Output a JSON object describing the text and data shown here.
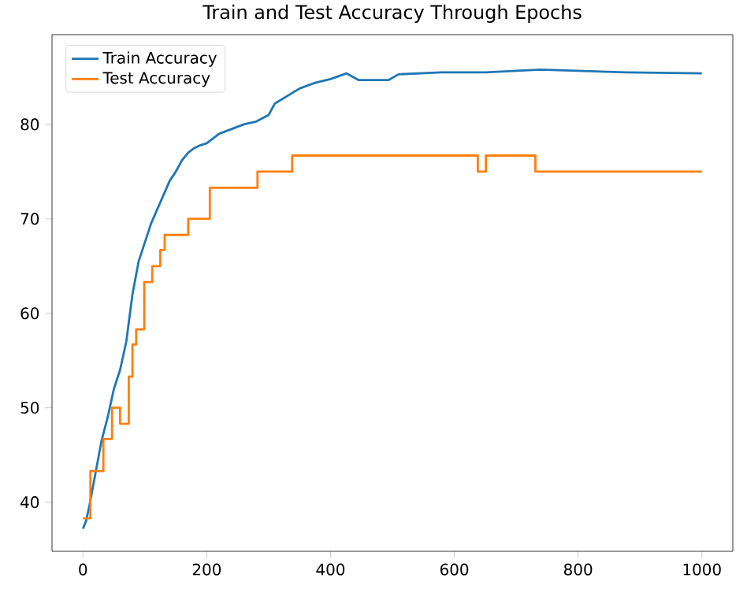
{
  "chart_data": {
    "type": "line",
    "title": "Train and Test Accuracy Through Epochs",
    "xlim": [
      -50,
      1050
    ],
    "ylim": [
      34.8,
      89.5
    ],
    "xticks": [
      0,
      200,
      400,
      600,
      800,
      1000
    ],
    "yticks": [
      40,
      50,
      60,
      70,
      80
    ],
    "legend": "top left",
    "grid": false,
    "series": [
      {
        "name": "Train Accuracy",
        "color": "#1f77b4",
        "x": [
          0,
          5,
          10,
          20,
          30,
          40,
          50,
          60,
          70,
          80,
          90,
          100,
          110,
          120,
          130,
          140,
          150,
          160,
          170,
          180,
          190,
          200,
          220,
          240,
          260,
          280,
          300,
          310,
          330,
          350,
          375,
          400,
          426,
          445,
          494,
          510,
          579,
          650,
          739,
          878,
          1000
        ],
        "values": [
          37.2,
          38,
          39.5,
          43,
          46.5,
          49,
          52,
          54,
          57,
          62,
          65.5,
          67.5,
          69.5,
          71,
          72.5,
          74,
          75,
          76.2,
          77,
          77.5,
          77.8,
          78,
          79,
          79.5,
          80,
          80.3,
          81,
          82.2,
          83,
          83.8,
          84.4,
          84.8,
          85.4,
          84.7,
          84.7,
          85.3,
          85.5,
          85.5,
          85.8,
          85.5,
          85.4
        ]
      },
      {
        "name": "Test Accuracy",
        "color": "#ff7f0e",
        "type": "step",
        "x": [
          0,
          12,
          33,
          47,
          60,
          74,
          80,
          86,
          99,
          112,
          125,
          132,
          170,
          205,
          282,
          338,
          638,
          651,
          731,
          1000
        ],
        "values": [
          38.3,
          43.3,
          46.7,
          50,
          48.3,
          53.3,
          56.7,
          58.3,
          63.3,
          65,
          66.7,
          68.3,
          70,
          73.3,
          75,
          76.7,
          75,
          76.7,
          75,
          75
        ]
      }
    ]
  }
}
